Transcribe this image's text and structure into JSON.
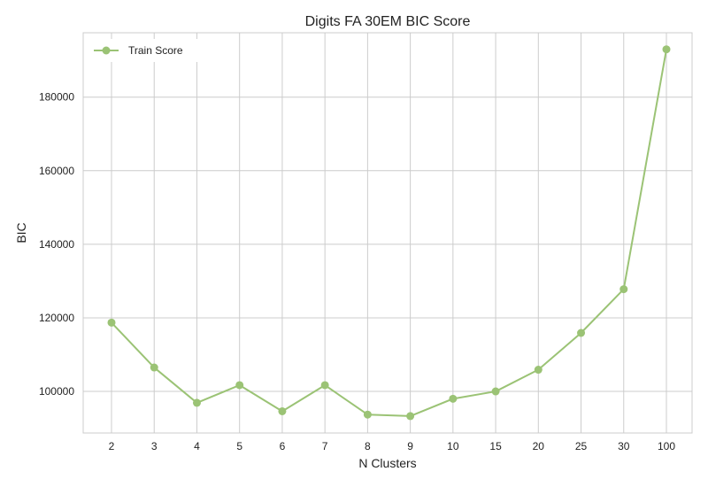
{
  "chart_data": {
    "type": "line",
    "title": "Digits FA 30EM BIC Score",
    "xlabel": "N Clusters",
    "ylabel": "BIC",
    "categories": [
      "2",
      "3",
      "4",
      "5",
      "6",
      "7",
      "8",
      "9",
      "10",
      "15",
      "20",
      "25",
      "30",
      "100"
    ],
    "series": [
      {
        "name": "Train Score",
        "color": "#9bc375",
        "values": [
          118700,
          106500,
          96900,
          101700,
          94600,
          101700,
          93700,
          93300,
          98000,
          100000,
          105900,
          115900,
          127800,
          193000
        ]
      }
    ],
    "ylim": [
      88700,
      197500
    ],
    "yticks": [
      100000,
      120000,
      140000,
      160000,
      180000
    ],
    "grid": true,
    "legend": "top-left"
  }
}
